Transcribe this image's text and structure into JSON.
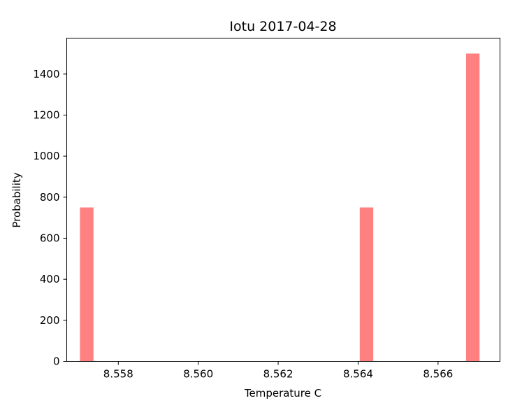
{
  "chart_data": {
    "type": "bar",
    "title": "Iotu 2017-04-28",
    "xlabel": "Temperature C",
    "ylabel": "Probability",
    "xlim": [
      8.55671,
      8.56755
    ],
    "ylim": [
      0,
      1575
    ],
    "xticks": [
      "8.558",
      "8.560",
      "8.562",
      "8.564",
      "8.566"
    ],
    "yticks": [
      "0",
      "200",
      "400",
      "600",
      "800",
      "1000",
      "1200",
      "1400"
    ],
    "bin_width": 0.000338,
    "bars": [
      {
        "x": 8.55721,
        "value": 750
      },
      {
        "x": 8.56421,
        "value": 750
      },
      {
        "x": 8.56687,
        "value": 1500
      }
    ],
    "bar_color": "#ff8080",
    "grid": false,
    "legend": "none"
  }
}
